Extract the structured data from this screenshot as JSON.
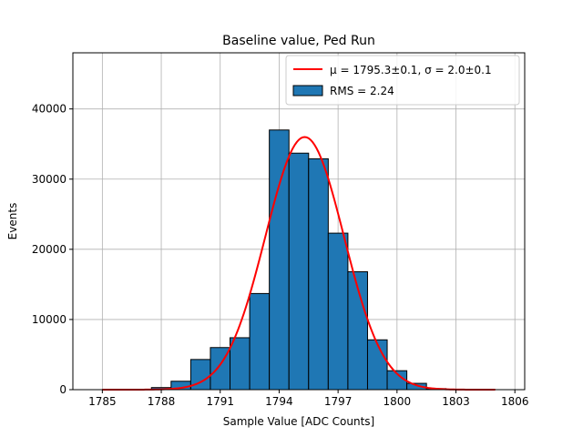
{
  "chart_data": {
    "type": "bar",
    "title": "Baseline value, Ped Run",
    "xlabel": "Sample Value [ADC Counts]",
    "ylabel": "Events",
    "xlim": [
      1783.5,
      1806.5
    ],
    "ylim": [
      0,
      48000
    ],
    "xticks": [
      1785,
      1788,
      1791,
      1794,
      1797,
      1800,
      1803,
      1806
    ],
    "yticks": [
      0,
      10000,
      20000,
      30000,
      40000
    ],
    "grid": true,
    "legend_position": "top-right",
    "bar_color": "#1f77b4",
    "fit_color": "#ff0000",
    "histogram": {
      "name": "RMS = 2.24",
      "bins": [
        {
          "x0": 1787.5,
          "x1": 1788.5,
          "count": 300
        },
        {
          "x0": 1788.5,
          "x1": 1789.5,
          "count": 1200
        },
        {
          "x0": 1789.5,
          "x1": 1790.5,
          "count": 4300
        },
        {
          "x0": 1790.5,
          "x1": 1791.5,
          "count": 6000
        },
        {
          "x0": 1791.5,
          "x1": 1792.5,
          "count": 7400
        },
        {
          "x0": 1792.5,
          "x1": 1793.5,
          "count": 13700
        },
        {
          "x0": 1793.5,
          "x1": 1794.5,
          "count": 37000
        },
        {
          "x0": 1794.5,
          "x1": 1795.5,
          "count": 33700
        },
        {
          "x0": 1795.5,
          "x1": 1796.5,
          "count": 32900
        },
        {
          "x0": 1796.5,
          "x1": 1797.5,
          "count": 22300
        },
        {
          "x0": 1797.5,
          "x1": 1798.5,
          "count": 16800
        },
        {
          "x0": 1798.5,
          "x1": 1799.5,
          "count": 7100
        },
        {
          "x0": 1799.5,
          "x1": 1800.5,
          "count": 2700
        },
        {
          "x0": 1800.5,
          "x1": 1801.5,
          "count": 900
        },
        {
          "x0": 1801.5,
          "x1": 1802.5,
          "count": 150
        }
      ]
    },
    "fit": {
      "name": "μ = 1795.3±0.1, σ = 2.0±0.1",
      "function": "gaussian",
      "amplitude": 36000,
      "mu": 1795.3,
      "sigma": 2.0,
      "x_range": [
        1785,
        1805
      ]
    }
  }
}
